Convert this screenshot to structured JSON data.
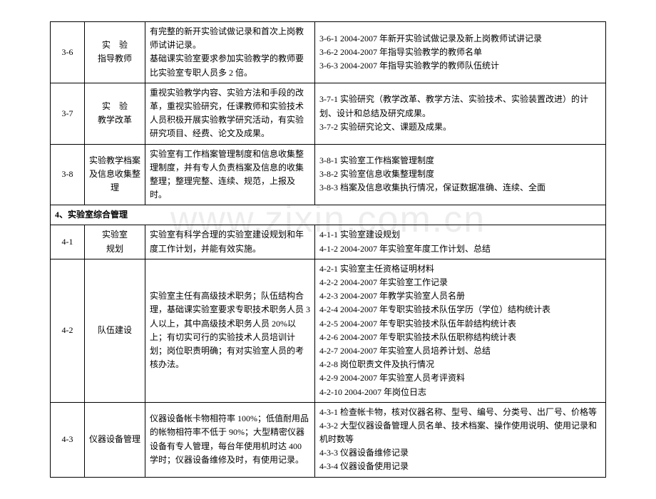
{
  "watermark": "www.zixin.com.cn",
  "table": {
    "col_widths": {
      "col1": 48,
      "col2": 85,
      "col3": 238
    },
    "rows": [
      {
        "cells": [
          {
            "class": "col1",
            "content": "3-6",
            "name": "row-3-6-id"
          },
          {
            "class": "col2",
            "content": "实　验\n指导教师",
            "name": "row-3-6-title",
            "multiline": true
          },
          {
            "class": "col3",
            "content": "有完整的新开实验试做记录和首次上岗教师试讲记录。\n基础课实验室要求参加实验教学的教师要比实验室专职人员多 2 倍。",
            "name": "row-3-6-desc",
            "multiline": true
          },
          {
            "class": "col4",
            "content": "3-6-1 2004-2007 年新开实验试做记录及新上岗教师试讲记录\n3-6-2 2004-2007 年指导实验教学的教师名单\n3-6-3 2004-2007 年指导实验教学的教师队伍统计",
            "name": "row-3-6-items",
            "multiline": true
          }
        ]
      },
      {
        "cells": [
          {
            "class": "col1",
            "content": "3-7",
            "name": "row-3-7-id"
          },
          {
            "class": "col2",
            "content": "实　验\n教学改革",
            "name": "row-3-7-title",
            "multiline": true
          },
          {
            "class": "col3",
            "content": "重视实验教学内容、实验方法和手段的改革，重视实验研究，任课教师和实验技术人员积极开展实验教学研究活动，有实验研究项目、经费、论文及成果。",
            "name": "row-3-7-desc"
          },
          {
            "class": "col4",
            "content": "3-7-1 实验研究（教学改革、教学方法、实验技术、实验装置改进）的计划、设计和总结及研究成果。\n3-7-2 实验研究论文、课题及成果。",
            "name": "row-3-7-items",
            "multiline": true
          }
        ]
      },
      {
        "cells": [
          {
            "class": "col1",
            "content": "3-8",
            "name": "row-3-8-id"
          },
          {
            "class": "col2",
            "content": "实验教学档案及信息收集整理",
            "name": "row-3-8-title"
          },
          {
            "class": "col3",
            "content": "实验室有工作档案管理制度和信息收集整理制度，并有专人负责档案及信息的收集整理；整理完整、连续、规范，上报及时。",
            "name": "row-3-8-desc"
          },
          {
            "class": "col4",
            "content": "3-8-1 实验室工作档案管理制度\n3-8-2 实验室信息收集整理制度\n3-8-3 档案及信息收集执行情况，保证数据准确、连续、全面",
            "name": "row-3-8-items",
            "multiline": true
          }
        ]
      },
      {
        "section": true,
        "colspan": 4,
        "content": "4、实验室综合管理",
        "name": "section-4-header"
      },
      {
        "cells": [
          {
            "class": "col1",
            "content": "4-1",
            "name": "row-4-1-id"
          },
          {
            "class": "col2",
            "content": "实验室\n规划",
            "name": "row-4-1-title",
            "multiline": true
          },
          {
            "class": "col3",
            "content": "实验室有科学合理的实验室建设规划和年度工作计划，并能有效实施。",
            "name": "row-4-1-desc"
          },
          {
            "class": "col4",
            "content": "4-1-1 实验室建设规划\n4-1-2 2004-2007 年实验室年度工作计划、总结",
            "name": "row-4-1-items",
            "multiline": true
          }
        ]
      },
      {
        "cells": [
          {
            "class": "col1",
            "content": "4-2",
            "name": "row-4-2-id"
          },
          {
            "class": "col2",
            "content": "队伍建设",
            "name": "row-4-2-title"
          },
          {
            "class": "col3",
            "content": "实验室主任有高级技术职务；队伍结构合理，基础课实验室要求专职技术职务人员 3 人以上，其中高级技术职务人员 20%以上；有切实可行的实验技术人员培训计划；岗位职责明确；有对实验室人员的考核办法。",
            "name": "row-4-2-desc"
          },
          {
            "class": "col4",
            "content": "4-2-1 实验室主任资格证明材料\n4-2-2 2004-2007 年实验室工作记录\n4-2-3 2004-2007 年教学实验室人员名册\n4-2-4 2004-2007 年专职实验技术队伍学历（学位）结构统计表\n4-2-5 2004-2007 年专职实验技术队伍年龄结构统计表\n4-2-6 2004-2007 年专职实验技术队伍职称结构统计表\n4-2-7 2004-2007 年实验室人员培养计划、总结\n4-2-8 岗位职责文件及执行情况\n4-2-9 2004-2007 年实验室人员考评资料\n4-2-10 2004-2007 年岗位日志",
            "name": "row-4-2-items",
            "multiline": true
          }
        ]
      },
      {
        "cells": [
          {
            "class": "col1",
            "content": "4-3",
            "name": "row-4-3-id"
          },
          {
            "class": "col2",
            "content": "仪器设备管理",
            "name": "row-4-3-title"
          },
          {
            "class": "col3",
            "content": "仪器设备帐卡物相符率 100%；低值耐用品的帐物相符率不低于 90%；大型精密仪器设备有专人管理，每台年使用机时达 400 学时；仪器设备维修及时，有使用记录。",
            "name": "row-4-3-desc"
          },
          {
            "class": "col4",
            "content": "4-3-1 检查帐卡物，核对仪器名称、型号、编号、分类号、出厂号、价格等\n4-3-2 大型仪器设备管理人员名单、技术档案、操作使用说明、使用记录和机时数等\n4-3-3 仪器设备维修记录\n4-3-4 仪器设备使用记录",
            "name": "row-4-3-items",
            "multiline": true
          }
        ]
      }
    ]
  }
}
